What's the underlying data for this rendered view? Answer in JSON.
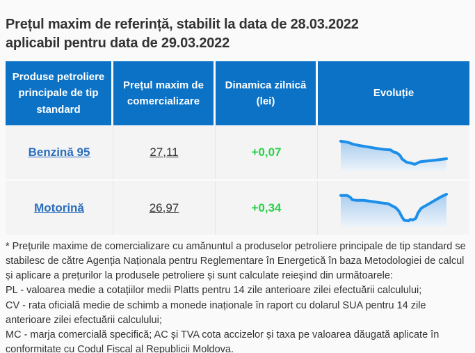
{
  "colors": {
    "header_bg": "#0b72c6",
    "link": "#2a6ebb",
    "positive": "#2bd049",
    "spark_line": "#1e8fe8",
    "spark_fill_top": "#a9cdee",
    "spark_fill_bottom": "#eef4fb",
    "cell_bg": "#f4f4f5",
    "page_bg": "#fafafa",
    "text": "#333333"
  },
  "page": {
    "title_line1": "Prețul maxim de referință, stabilit la data de 28.03.2022",
    "title_line2": "aplicabil pentru data de 29.03.2022"
  },
  "table": {
    "headers": [
      "Produse petroliere principale de tip standard",
      "Prețul maxim de comercializare",
      "Dinamica zilnică (lei)",
      "Evoluție"
    ],
    "rows": [
      {
        "product": "Benzină 95",
        "price": "27,11",
        "change": "+0,07"
      },
      {
        "product": "Motorină",
        "price": "26,97",
        "change": "+0,34"
      }
    ]
  },
  "chart_data": [
    {
      "type": "area",
      "name": "Benzină 95 evoluție sparkline",
      "points_format": "normalized [x 0-1 left-to-right, y 0-1 where 0=highest price, 1=lowest]",
      "points": [
        [
          0,
          0.18
        ],
        [
          0.05,
          0.2
        ],
        [
          0.08,
          0.23
        ],
        [
          0.12,
          0.28
        ],
        [
          0.18,
          0.32
        ],
        [
          0.25,
          0.36
        ],
        [
          0.33,
          0.41
        ],
        [
          0.42,
          0.45
        ],
        [
          0.47,
          0.46
        ],
        [
          0.5,
          0.53
        ],
        [
          0.53,
          0.56
        ],
        [
          0.56,
          0.64
        ],
        [
          0.58,
          0.76
        ],
        [
          0.62,
          0.86
        ],
        [
          0.66,
          0.89
        ],
        [
          0.7,
          0.93
        ],
        [
          0.75,
          0.85
        ],
        [
          0.8,
          0.83
        ],
        [
          0.88,
          0.8
        ],
        [
          1,
          0.75
        ]
      ]
    },
    {
      "type": "area",
      "name": "Motorină evoluție sparkline",
      "points_format": "normalized [x 0-1 left-to-right, y 0-1 where 0=highest price, 1=lowest]",
      "points": [
        [
          0,
          0.13
        ],
        [
          0.06,
          0.13
        ],
        [
          0.09,
          0.19
        ],
        [
          0.11,
          0.27
        ],
        [
          0.15,
          0.29
        ],
        [
          0.22,
          0.29
        ],
        [
          0.3,
          0.33
        ],
        [
          0.38,
          0.37
        ],
        [
          0.45,
          0.4
        ],
        [
          0.48,
          0.46
        ],
        [
          0.52,
          0.53
        ],
        [
          0.55,
          0.64
        ],
        [
          0.58,
          0.84
        ],
        [
          0.6,
          0.94
        ],
        [
          0.64,
          0.96
        ],
        [
          0.66,
          0.91
        ],
        [
          0.68,
          0.93
        ],
        [
          0.71,
          0.88
        ],
        [
          0.73,
          0.7
        ],
        [
          0.76,
          0.55
        ],
        [
          0.8,
          0.47
        ],
        [
          0.85,
          0.37
        ],
        [
          0.9,
          0.27
        ],
        [
          0.95,
          0.17
        ],
        [
          1,
          0.09
        ]
      ]
    }
  ],
  "footnote": {
    "para1": "* Prețurile maxime de comercializare cu amănuntul a produselor petroliere principale de tip standard se stabilesc de către Agenția Naționala pentru Reglementare în Energetică în baza Metodologiei de calcul și aplicare a prețurilor la produsele petroliere și sunt calculate reieșind din următoarele:",
    "para2": "PL - valoarea medie a cotațiilor medii Platts pentru 14 zile anterioare zilei efectuării calculului;",
    "para3": "CV - rata oficială medie de schimb a monede inaționale în raport cu dolarul SUA pentru 14 zile anterioare zilei efectuării calculului;",
    "para4": "MC - marja comercială specifică; AC și TVA cota accizelor și taxa pe valoarea dăugată aplicate în conformitate cu Codul Fiscal al Republicii Moldova."
  }
}
